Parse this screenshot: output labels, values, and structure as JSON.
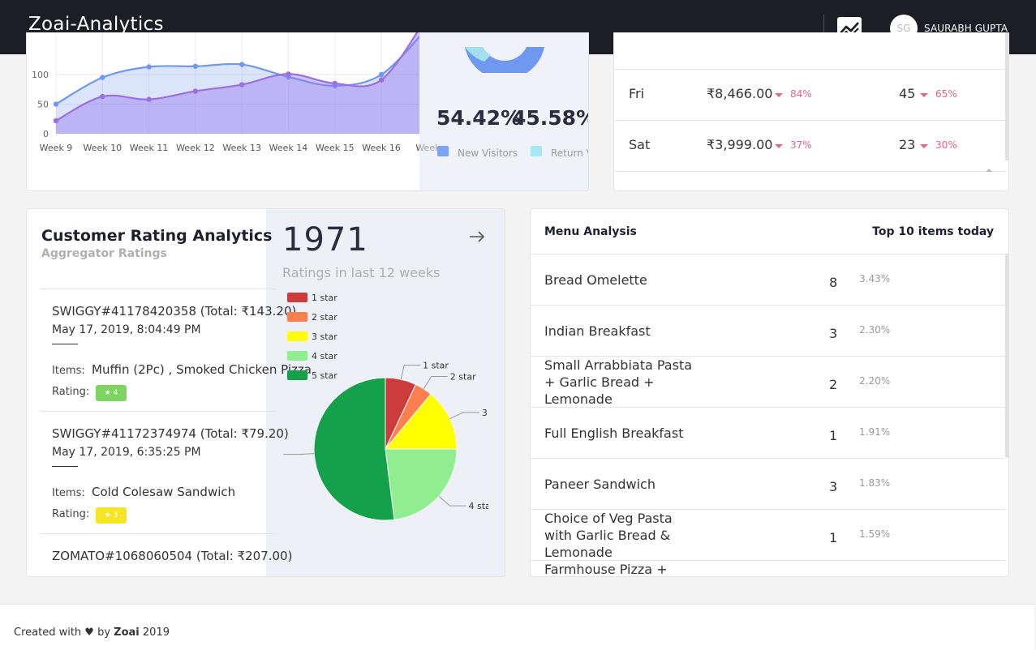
{
  "nav": {
    "brand": "Zoai-Analytics",
    "avatar_initials": "SG",
    "username": "SAURABH GUPTA"
  },
  "visitors": {
    "new_pct": "54.42%",
    "return_pct": "45.58%",
    "legend_new": "New Visitors",
    "legend_return": "Return V",
    "chart_data": {
      "type": "area",
      "x": [
        "Week 9",
        "Week 10",
        "Week 11",
        "Week 12",
        "Week 13",
        "Week 14",
        "Week 15",
        "Week 16",
        "Week"
      ],
      "y_ticks": [
        0,
        50,
        100
      ],
      "series": [
        {
          "values": [
            50,
            95,
            113,
            114,
            117,
            96,
            81,
            100,
            180
          ]
        },
        {
          "values": [
            22,
            63,
            58,
            72,
            83,
            101,
            85,
            91,
            200
          ]
        }
      ]
    }
  },
  "days": [
    {
      "day": "Fri",
      "amount": "₹8,466.00",
      "amount_pct": "84%",
      "count": "45",
      "count_pct": "65%"
    },
    {
      "day": "Sat",
      "amount": "₹3,999.00",
      "amount_pct": "37%",
      "count": "23",
      "count_pct": "30%"
    }
  ],
  "ratings": {
    "title": "Customer Rating Analytics",
    "subtitle": "Aggregator Ratings",
    "total": "1971",
    "total_caption": "Ratings in last 12 weeks",
    "items_label": "Items:",
    "rating_label": "Rating:",
    "orders": [
      {
        "id": "SWIGGY#41178420358 (Total: ₹143.20)",
        "date": "May 17, 2019, 8:04:49 PM",
        "items": "Muffin (2Pc) , Smoked Chicken Pizza",
        "rating": "4"
      },
      {
        "id": "SWIGGY#41172374974 (Total: ₹79.20)",
        "date": "May 17, 2019, 6:35:25 PM",
        "items": "Cold Colesaw Sandwich",
        "rating": "3"
      },
      {
        "id": "ZOMATO#1068060504 (Total: ₹207.00)"
      }
    ],
    "chart_data": {
      "type": "pie",
      "categories": [
        "1 star",
        "2 star",
        "3 star",
        "4 star",
        "5 star"
      ],
      "values": [
        7,
        4,
        14,
        23,
        52
      ],
      "colors": [
        "#cc3c3c",
        "#ff7f50",
        "#ffff00",
        "#90ee90",
        "#15a04a"
      ]
    }
  },
  "menu": {
    "title": "Menu Analysis",
    "subtitle": "Top 10 items today",
    "items": [
      {
        "name": "Bread Omelette",
        "count": "8",
        "pct": "3.43%"
      },
      {
        "name": "Indian Breakfast",
        "count": "3",
        "pct": "2.30%"
      },
      {
        "name": "Small Arrabbiata Pasta + Garlic Bread + Lemonade",
        "count": "2",
        "pct": "2.20%"
      },
      {
        "name": "Full English Breakfast",
        "count": "1",
        "pct": "1.91%"
      },
      {
        "name": "Paneer Sandwich",
        "count": "3",
        "pct": "1.83%"
      },
      {
        "name": "Choice of Veg Pasta with Garlic Bread & Lemonade",
        "count": "1",
        "pct": "1.59%"
      },
      {
        "name": "Farmhouse Pizza +"
      }
    ]
  },
  "footer": {
    "prefix": "Created with ♥ by",
    "brand": "Zoai",
    "year": "2019"
  }
}
